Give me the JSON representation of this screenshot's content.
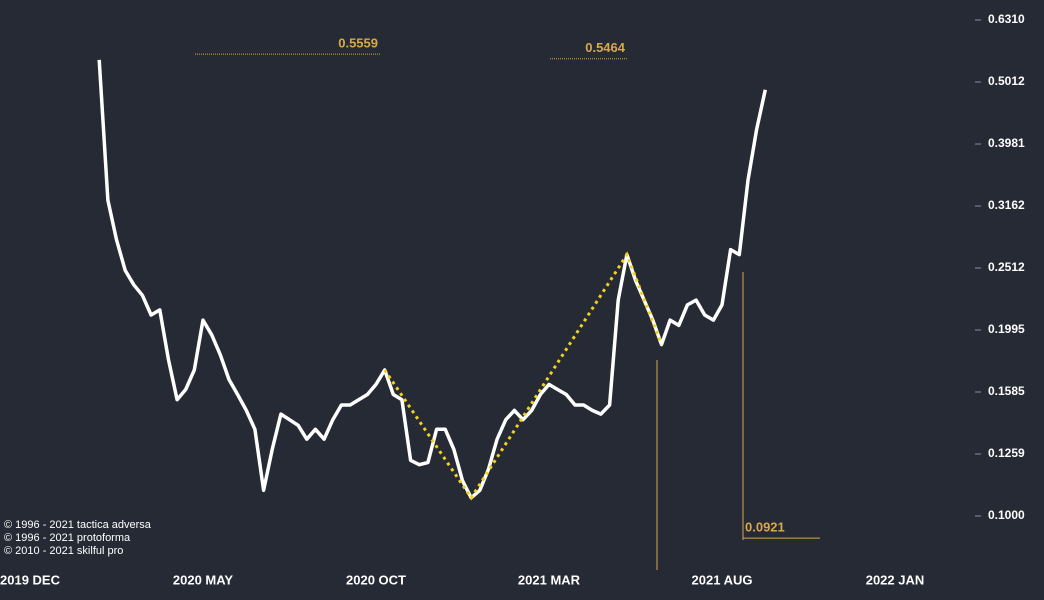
{
  "chart_data": {
    "type": "line",
    "categories": [
      "2019 DEC",
      null,
      null,
      null,
      null,
      null,
      null,
      null,
      null,
      null,
      null,
      null,
      null,
      null,
      null,
      null,
      null,
      null,
      null,
      null,
      "2020 MAY",
      null,
      null,
      null,
      null,
      null,
      null,
      null,
      null,
      null,
      null,
      null,
      null,
      null,
      null,
      null,
      null,
      null,
      null,
      null,
      "2020 OCT",
      null,
      null,
      null,
      null,
      null,
      null,
      null,
      null,
      null,
      null,
      null,
      null,
      null,
      null,
      null,
      null,
      null,
      null,
      null,
      "2021 MAR",
      null,
      null,
      null,
      null,
      null,
      null,
      null,
      null,
      null,
      null,
      null,
      null,
      null,
      null,
      null,
      null,
      null,
      null,
      null,
      "2021 AUG",
      null,
      null,
      null,
      null,
      null,
      null,
      null,
      null,
      null,
      null,
      null,
      null,
      null,
      null,
      null,
      null,
      null,
      null,
      null,
      "2022 JAN",
      null,
      null,
      null,
      null
    ],
    "series": [
      {
        "color": "#ffffff",
        "values": [
          null,
          null,
          null,
          null,
          null,
          null,
          null,
          null,
          0.544,
          0.323,
          0.279,
          0.249,
          0.236,
          0.227,
          0.211,
          0.215,
          0.179,
          0.154,
          0.16,
          0.172,
          0.207,
          0.196,
          0.182,
          0.166,
          0.157,
          0.148,
          0.138,
          0.11,
          0.128,
          0.146,
          0.143,
          0.14,
          0.133,
          0.138,
          0.133,
          0.143,
          0.151,
          0.151,
          0.154,
          0.157,
          0.163,
          0.172,
          0.157,
          0.154,
          0.123,
          0.121,
          0.122,
          0.138,
          0.138,
          0.128,
          0.114,
          0.107,
          0.11,
          0.119,
          0.133,
          0.143,
          0.148,
          0.143,
          0.148,
          0.157,
          0.163,
          0.16,
          0.157,
          0.151,
          0.151,
          0.148,
          0.146,
          0.151,
          0.223,
          0.264,
          0.24,
          0.223,
          0.207,
          0.189,
          0.207,
          0.203,
          0.219,
          0.223,
          0.211,
          0.207,
          0.219,
          0.269,
          0.264,
          0.348,
          0.42,
          0.487,
          null,
          null,
          null,
          null,
          null,
          null,
          null,
          null,
          null,
          null,
          null,
          null,
          null,
          null,
          null,
          null,
          null,
          null,
          null
        ]
      }
    ],
    "log_scale": true,
    "ylim": [
      0.1,
      0.631
    ],
    "yticks": [
      {
        "value": 0.631,
        "label": "0.6310"
      },
      0.5012,
      0.3981,
      0.3162,
      0.2512,
      0.1995,
      0.1585,
      0.1259,
      {
        "value": 0.1,
        "label": "0.1000"
      }
    ],
    "annotations": [
      0.5559,
      0.5464,
      0.0921
    ],
    "annotation_color": "#d9a84a",
    "pattern_color": "#f2d21b",
    "notes": [
      "© 1996 - 2021 tactica adversa",
      "© 1996 - 2021 protoforma",
      "© 2010 - 2021 skilful pro"
    ]
  }
}
